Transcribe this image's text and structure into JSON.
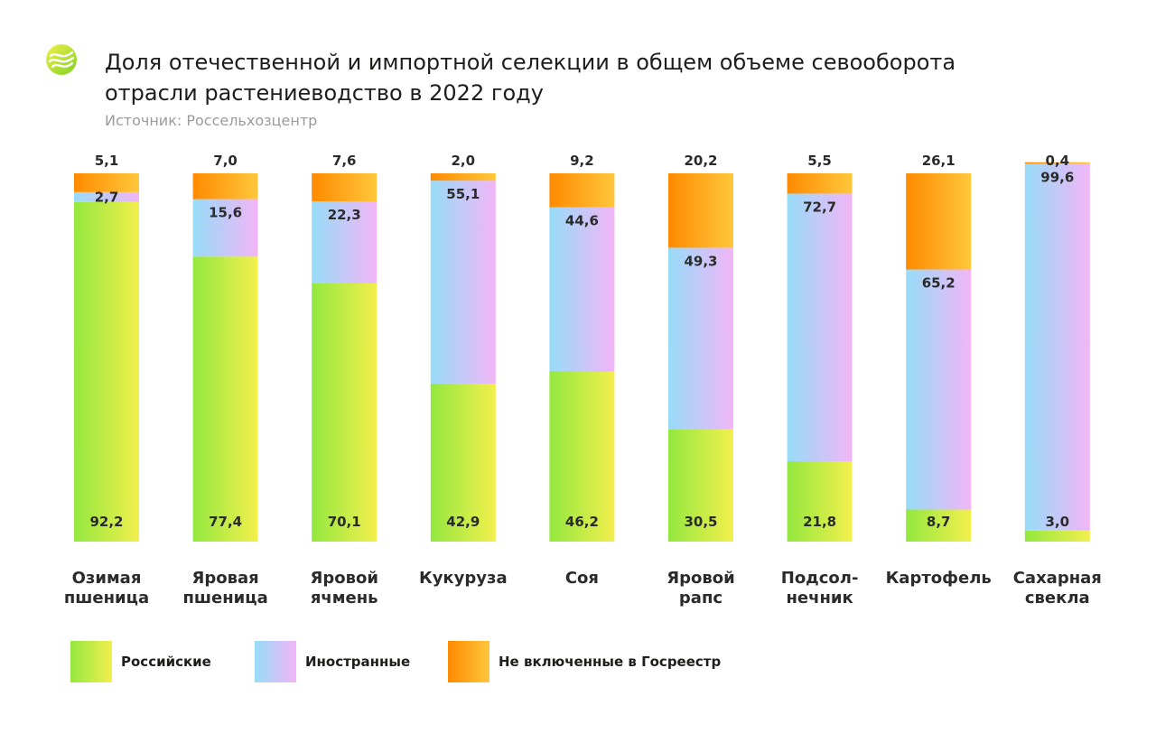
{
  "header": {
    "title": "Доля отечественной и импортной селекции в общем объеме севооборота отрасли растениеводство в 2022 году",
    "source": "Источник: Россельхозцентр"
  },
  "colors": {
    "russian_start": "#93e83f",
    "russian_end": "#f3ef4d",
    "foreign_start": "#97dcf8",
    "foreign_end": "#f2b5f6",
    "unregistered_start": "#ff8a00",
    "unregistered_end": "#ffc73c"
  },
  "chart_data": {
    "type": "bar",
    "stacked": true,
    "unit": "%",
    "ylim": [
      0,
      100
    ],
    "grid": false,
    "legend_position": "bottom",
    "categories": [
      [
        "Озимая",
        "пшеница"
      ],
      [
        "Яровая",
        "пшеница"
      ],
      [
        "Яровой",
        "ячмень"
      ],
      [
        "Кукуруза"
      ],
      [
        "Соя"
      ],
      [
        "Яровой",
        "рапс"
      ],
      [
        "Подсол-",
        "нечник"
      ],
      [
        "Картофель"
      ],
      [
        "Сахарная",
        "свекла"
      ]
    ],
    "series": [
      {
        "key": "russian",
        "name": "Российские",
        "values": [
          92.2,
          77.4,
          70.1,
          42.9,
          46.2,
          30.5,
          21.8,
          8.7,
          3.0
        ],
        "labels": [
          "92,2",
          "77,4",
          "70,1",
          "42,9",
          "46,2",
          "30,5",
          "21,8",
          "8,7",
          "3,0"
        ]
      },
      {
        "key": "foreign",
        "name": "Иностранные",
        "values": [
          2.7,
          15.6,
          22.3,
          55.1,
          44.6,
          49.3,
          72.7,
          65.2,
          99.6
        ],
        "labels": [
          "2,7",
          "15,6",
          "22,3",
          "55,1",
          "44,6",
          "49,3",
          "72,7",
          "65,2",
          "99,6"
        ]
      },
      {
        "key": "unregistered",
        "name": "Не включенные в Госреестр",
        "values": [
          5.1,
          7.0,
          7.6,
          2.0,
          9.2,
          20.2,
          5.5,
          26.1,
          0.4
        ],
        "labels": [
          "5,1",
          "7,0",
          "7,6",
          "2,0",
          "9,2",
          "20,2",
          "5,5",
          "26,1",
          "0,4"
        ]
      }
    ]
  }
}
